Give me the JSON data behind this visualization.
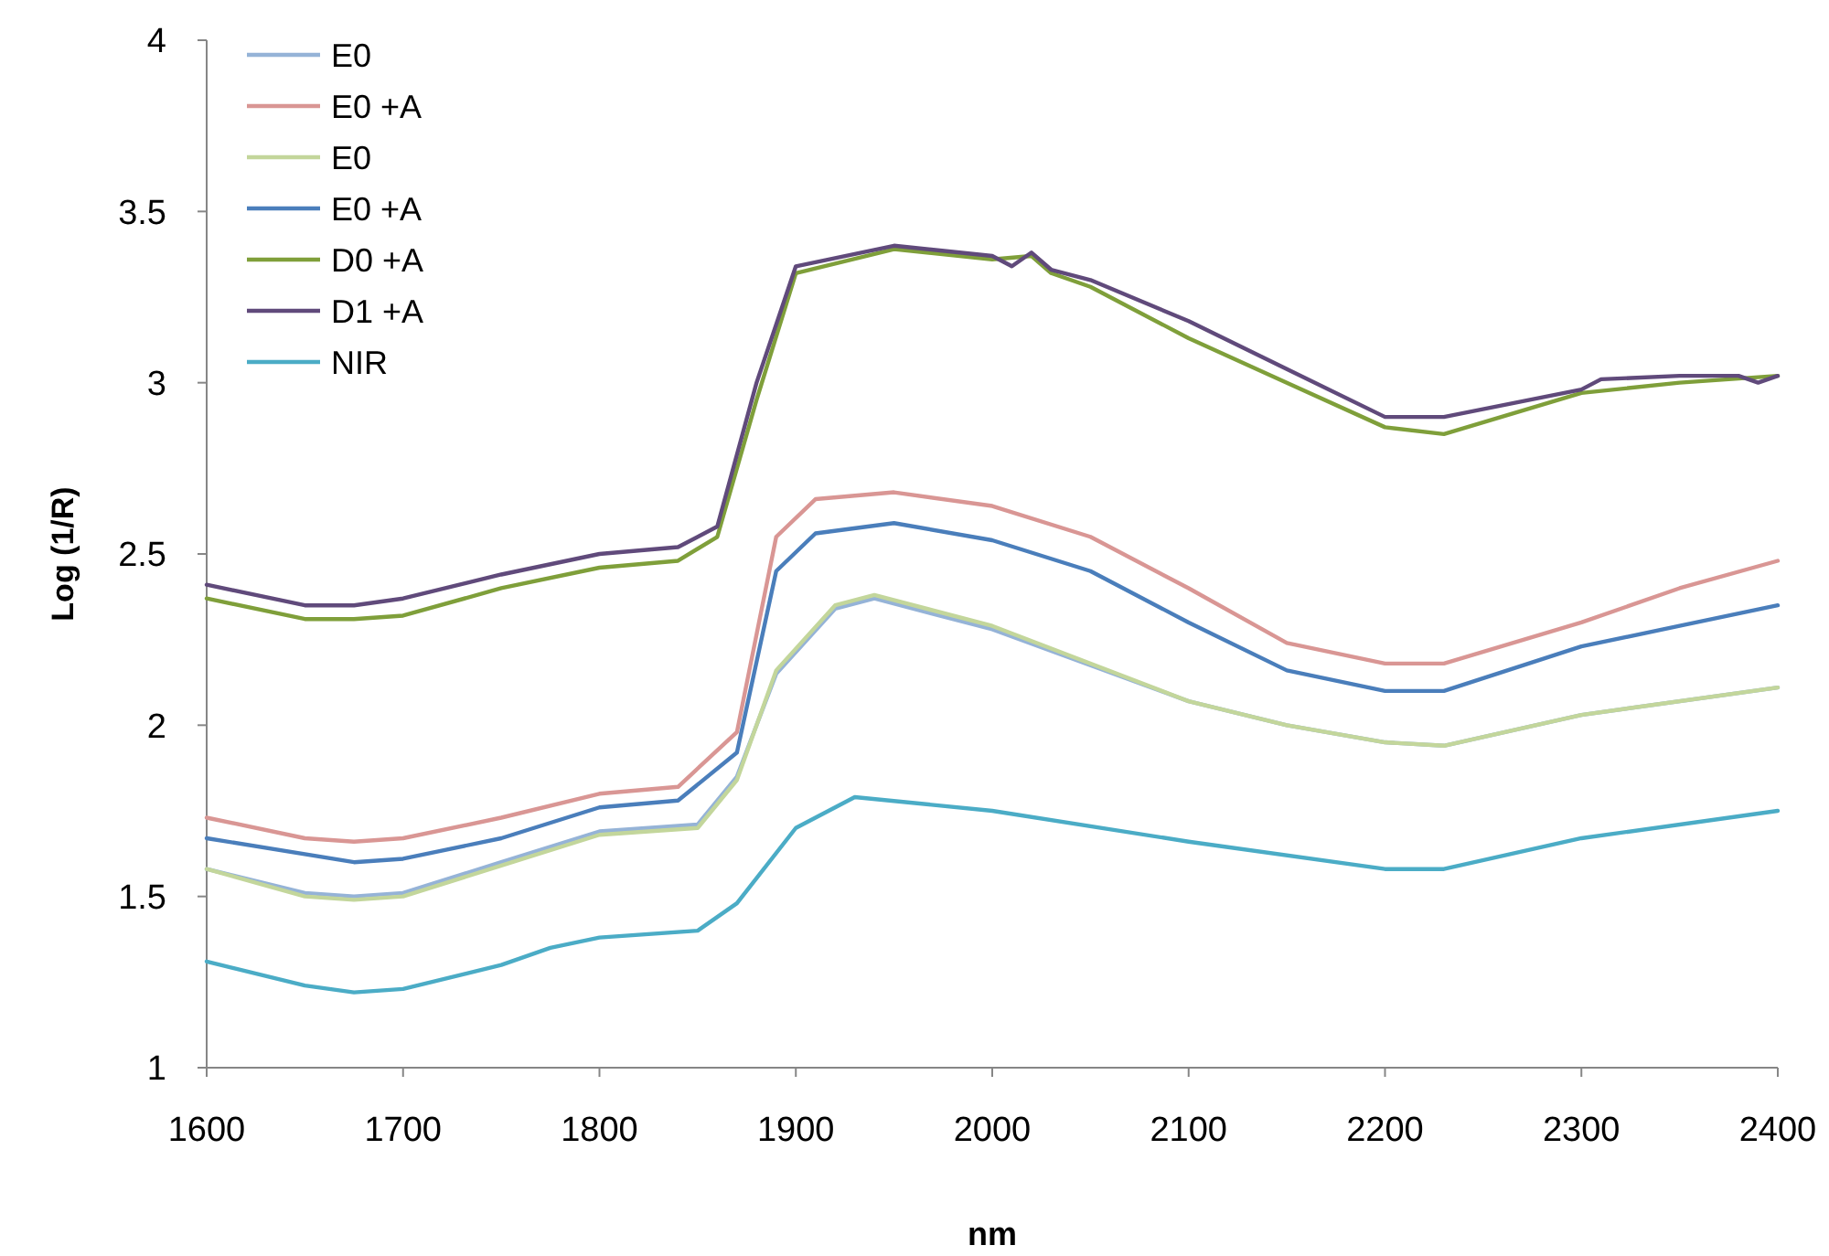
{
  "chart_data": {
    "type": "line",
    "xlabel": "nm",
    "ylabel": "Log (1/R)",
    "xlim": [
      1600,
      2400
    ],
    "xticks": [
      1600,
      1700,
      1800,
      1900,
      2000,
      2100,
      2200,
      2300,
      2400
    ],
    "ylim": [
      1,
      4
    ],
    "yticks": [
      1,
      1.5,
      2,
      2.5,
      3,
      3.5,
      4
    ],
    "grid": false,
    "legend": "top left",
    "marker": "none",
    "line_style": "solid",
    "series": [
      {
        "name": "E0",
        "color": "#95b3d7",
        "x": [
          1600,
          1650,
          1675,
          1700,
          1750,
          1800,
          1850,
          1870,
          1890,
          1920,
          1940,
          2000,
          2100,
          2150,
          2200,
          2230,
          2300,
          2400
        ],
        "values": [
          1.58,
          1.51,
          1.5,
          1.51,
          1.6,
          1.69,
          1.71,
          1.85,
          2.15,
          2.34,
          2.37,
          2.28,
          2.07,
          2.0,
          1.95,
          1.94,
          2.03,
          2.11
        ]
      },
      {
        "name": "E0 +A",
        "color": "#d99694",
        "x": [
          1600,
          1650,
          1675,
          1700,
          1750,
          1800,
          1840,
          1870,
          1890,
          1910,
          1950,
          2000,
          2050,
          2100,
          2150,
          2200,
          2230,
          2300,
          2350,
          2400
        ],
        "values": [
          1.73,
          1.67,
          1.66,
          1.67,
          1.73,
          1.8,
          1.82,
          1.98,
          2.55,
          2.66,
          2.68,
          2.64,
          2.55,
          2.4,
          2.24,
          2.18,
          2.18,
          2.3,
          2.4,
          2.48
        ]
      },
      {
        "name": "E0",
        "color": "#c3d69b",
        "x": [
          1600,
          1650,
          1675,
          1700,
          1750,
          1800,
          1850,
          1870,
          1890,
          1920,
          1940,
          2000,
          2100,
          2150,
          2200,
          2230,
          2300,
          2400
        ],
        "values": [
          1.58,
          1.5,
          1.49,
          1.5,
          1.59,
          1.68,
          1.7,
          1.84,
          2.16,
          2.35,
          2.38,
          2.29,
          2.07,
          2.0,
          1.95,
          1.94,
          2.03,
          2.11
        ]
      },
      {
        "name": "E0 +A",
        "color": "#4a7ebb",
        "x": [
          1600,
          1675,
          1700,
          1750,
          1800,
          1840,
          1870,
          1890,
          1910,
          1950,
          2000,
          2050,
          2100,
          2150,
          2200,
          2230,
          2300,
          2350,
          2400
        ],
        "values": [
          1.67,
          1.6,
          1.61,
          1.67,
          1.76,
          1.78,
          1.92,
          2.45,
          2.56,
          2.59,
          2.54,
          2.45,
          2.3,
          2.16,
          2.1,
          2.1,
          2.23,
          2.29,
          2.35
        ]
      },
      {
        "name": "D0 +A",
        "color": "#7f9f3a",
        "x": [
          1600,
          1650,
          1675,
          1700,
          1750,
          1800,
          1840,
          1860,
          1880,
          1900,
          1950,
          2000,
          2020,
          2030,
          2050,
          2100,
          2150,
          2200,
          2230,
          2300,
          2350,
          2400
        ],
        "values": [
          2.37,
          2.31,
          2.31,
          2.32,
          2.4,
          2.46,
          2.48,
          2.55,
          2.95,
          3.32,
          3.39,
          3.36,
          3.37,
          3.32,
          3.28,
          3.13,
          3.0,
          2.87,
          2.85,
          2.97,
          3.0,
          3.02
        ]
      },
      {
        "name": "D1 +A",
        "color": "#604a7b",
        "x": [
          1600,
          1650,
          1675,
          1700,
          1750,
          1800,
          1840,
          1860,
          1880,
          1900,
          1950,
          2000,
          2010,
          2020,
          2030,
          2050,
          2100,
          2150,
          2200,
          2230,
          2300,
          2310,
          2350,
          2380,
          2390,
          2400
        ],
        "values": [
          2.41,
          2.35,
          2.35,
          2.37,
          2.44,
          2.5,
          2.52,
          2.58,
          3.0,
          3.34,
          3.4,
          3.37,
          3.34,
          3.38,
          3.33,
          3.3,
          3.18,
          3.04,
          2.9,
          2.9,
          2.98,
          3.01,
          3.02,
          3.02,
          3.0,
          3.02
        ]
      },
      {
        "name": "NIR",
        "color": "#4bacc6",
        "x": [
          1600,
          1650,
          1675,
          1700,
          1750,
          1775,
          1800,
          1850,
          1870,
          1900,
          1930,
          2000,
          2100,
          2200,
          2230,
          2300,
          2400
        ],
        "values": [
          1.31,
          1.24,
          1.22,
          1.23,
          1.3,
          1.35,
          1.38,
          1.4,
          1.48,
          1.7,
          1.79,
          1.75,
          1.66,
          1.58,
          1.58,
          1.67,
          1.75
        ]
      }
    ]
  }
}
